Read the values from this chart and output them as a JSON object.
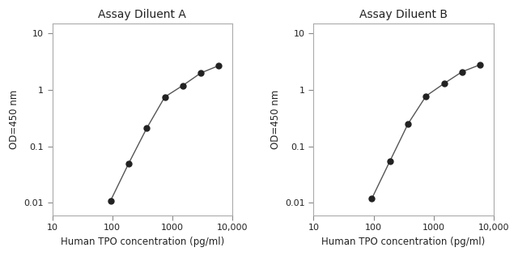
{
  "panel_A": {
    "title": "Assay Diluent A",
    "x": [
      93.75,
      187.5,
      375,
      750,
      1500,
      3000,
      6000
    ],
    "y": [
      0.011,
      0.05,
      0.21,
      0.75,
      1.2,
      2.0,
      2.7
    ]
  },
  "panel_B": {
    "title": "Assay Diluent B",
    "x": [
      93.75,
      187.5,
      375,
      750,
      1500,
      3000,
      6000
    ],
    "y": [
      0.012,
      0.055,
      0.25,
      0.78,
      1.3,
      2.1,
      2.8
    ]
  },
  "xlabel": "Human TPO concentration (pg/ml)",
  "ylabel": "OD=450 nm",
  "xlim": [
    10,
    10000
  ],
  "ylim": [
    0.006,
    15
  ],
  "line_color": "#555555",
  "marker_color": "#222222",
  "marker_size": 5,
  "title_color": "#222222",
  "label_color": "#222222",
  "tick_label_color": "#222222",
  "xticks": [
    10,
    100,
    1000,
    10000
  ],
  "xtick_labels": [
    "10",
    "100",
    "1000",
    "10,000"
  ],
  "yticks": [
    0.01,
    0.1,
    1,
    10
  ],
  "ytick_labels": [
    "0.01",
    "0.1",
    "1",
    "10"
  ]
}
